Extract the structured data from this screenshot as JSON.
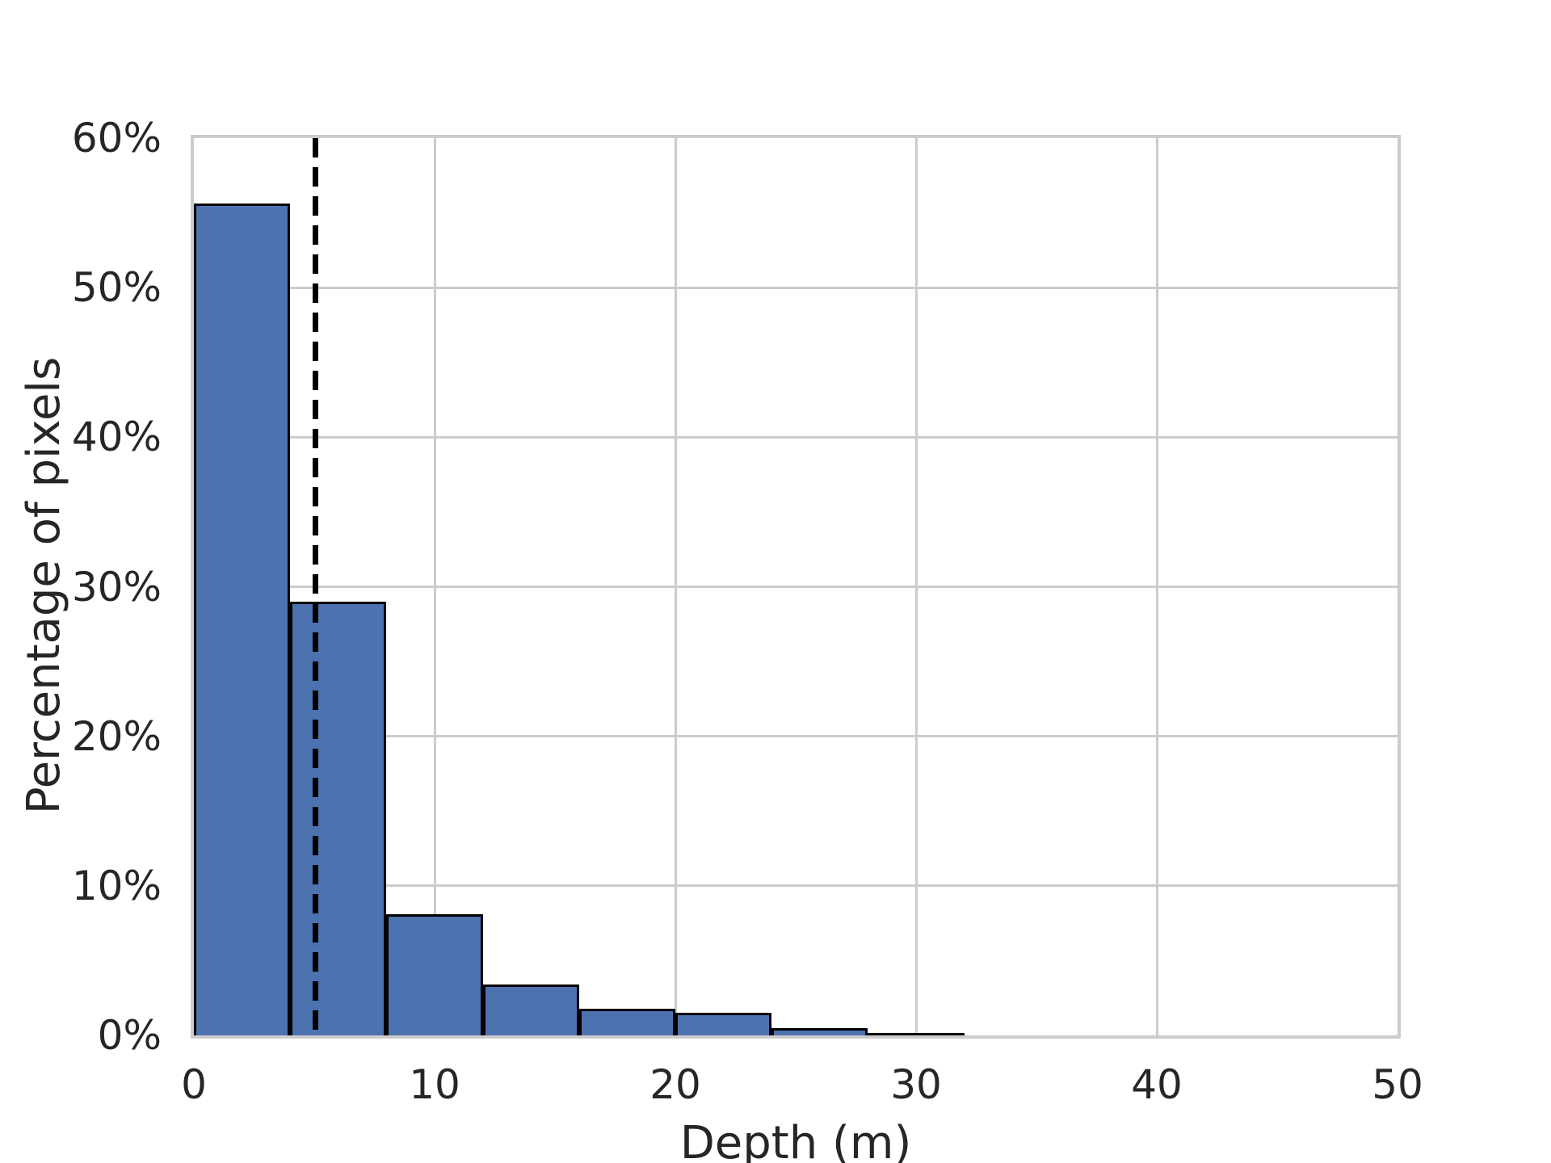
{
  "chart_data": {
    "type": "bar",
    "subtype": "histogram",
    "title": "",
    "xlabel": "Depth (m)",
    "ylabel": "Percentage of pixels",
    "xlim": [
      0,
      50
    ],
    "ylim": [
      0,
      60
    ],
    "x_ticks": [
      0,
      10,
      20,
      30,
      40,
      50
    ],
    "y_ticks": [
      0,
      10,
      20,
      30,
      40,
      50,
      60
    ],
    "y_tick_suffix": "%",
    "grid": true,
    "legend_position": "none",
    "bin_width": 4,
    "bin_edges": [
      0,
      4,
      8,
      12,
      16,
      20,
      24,
      28,
      32
    ],
    "categories": [
      "0-4",
      "4-8",
      "8-12",
      "12-16",
      "16-20",
      "20-24",
      "24-28",
      "28-32"
    ],
    "values": [
      55.6,
      29.0,
      8.1,
      3.4,
      1.8,
      1.5,
      0.5,
      0.12
    ],
    "annotations": [
      {
        "kind": "vline",
        "x": 5.05,
        "style": "dashed"
      }
    ],
    "colors": {
      "bar_fill": "#4C72B0",
      "bar_edge": "#000000",
      "grid": "#cccccc",
      "spine": "#cccccc",
      "text": "#262626",
      "dashed_line": "#000000",
      "background": "#ffffff"
    }
  }
}
